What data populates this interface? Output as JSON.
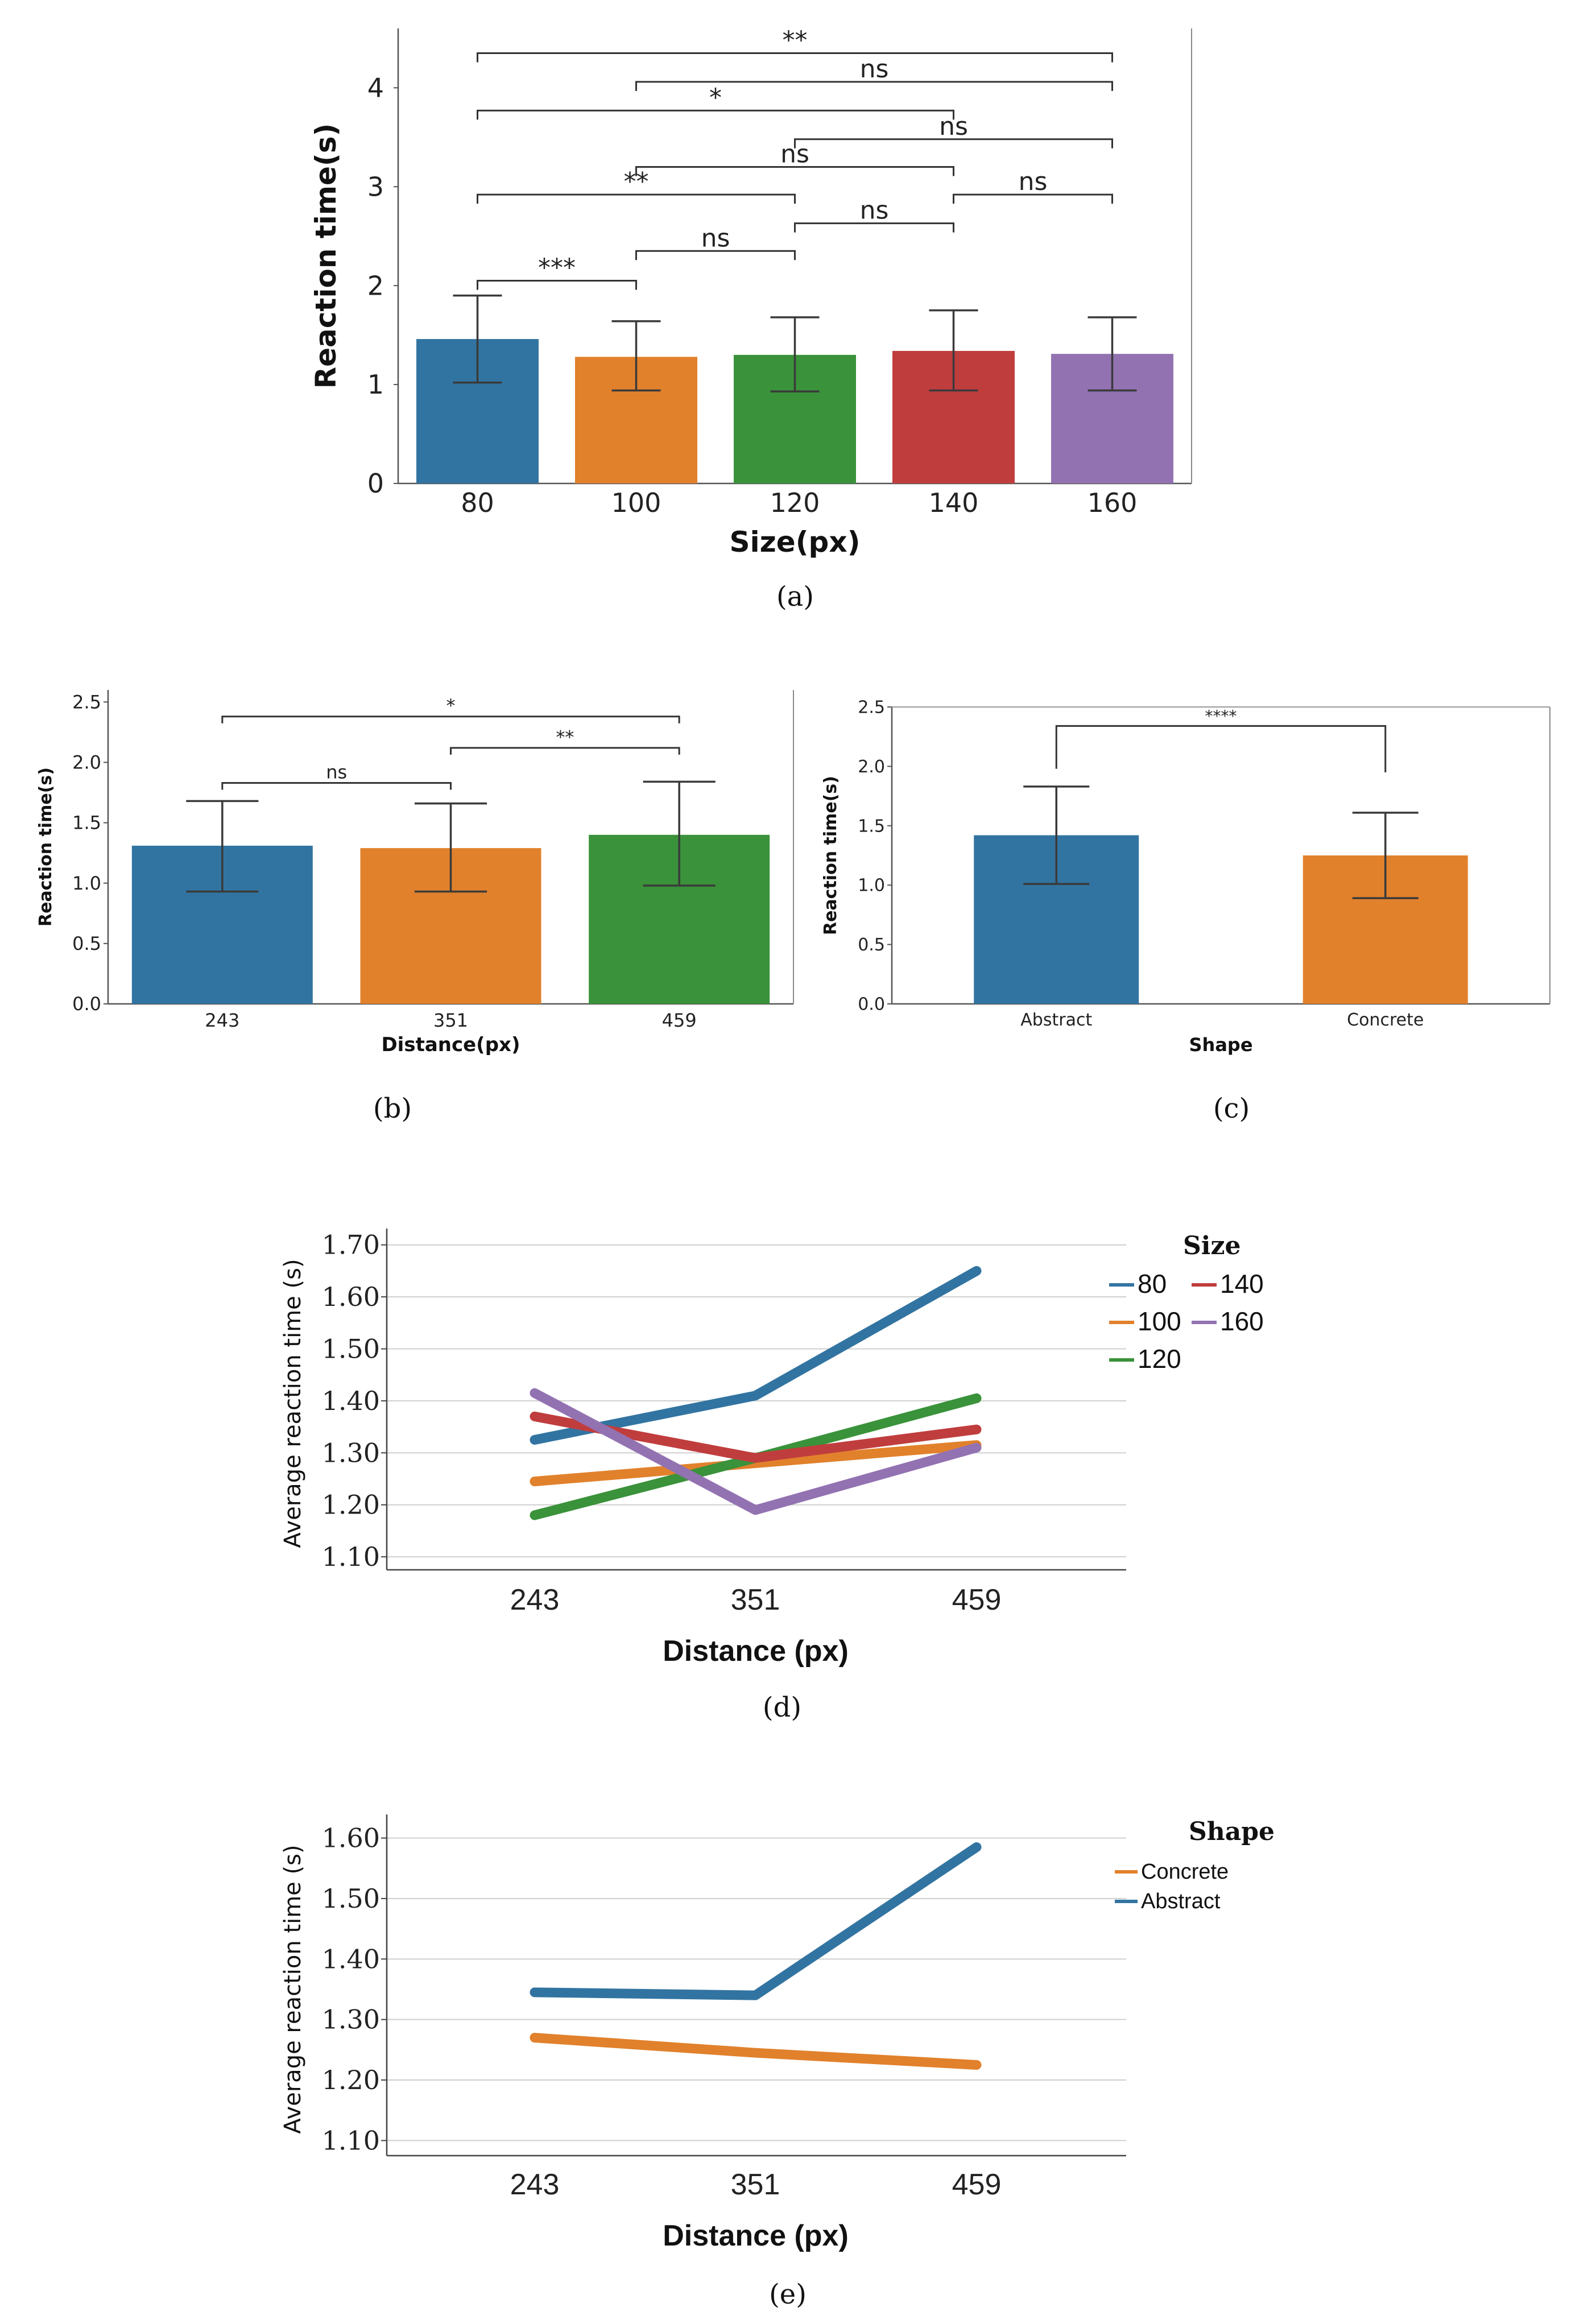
{
  "chart_data": [
    {
      "id": "a",
      "type": "bar",
      "panel_label": "(a)",
      "xlabel": "Size(px)",
      "ylabel": "Reaction time(s)",
      "ylim": [
        0,
        4.6
      ],
      "yticks": [
        0,
        1,
        2,
        3,
        4
      ],
      "categories": [
        "80",
        "100",
        "120",
        "140",
        "160"
      ],
      "values": [
        1.46,
        1.28,
        1.3,
        1.34,
        1.31
      ],
      "err_low": [
        1.02,
        0.94,
        0.93,
        0.94,
        0.94
      ],
      "err_high": [
        1.9,
        1.64,
        1.68,
        1.75,
        1.68
      ],
      "colors": [
        "#3274a1",
        "#e1812c",
        "#3a923a",
        "#c03d3e",
        "#9372b2"
      ],
      "significance": [
        {
          "from": 0,
          "to": 1,
          "y": 2.05,
          "label": "***"
        },
        {
          "from": 1,
          "to": 2,
          "y": 2.35,
          "label": "ns"
        },
        {
          "from": 2,
          "to": 3,
          "y": 2.63,
          "label": "ns"
        },
        {
          "from": 0,
          "to": 2,
          "y": 2.92,
          "label": "**"
        },
        {
          "from": 3,
          "to": 4,
          "y": 2.92,
          "label": "ns"
        },
        {
          "from": 1,
          "to": 3,
          "y": 3.2,
          "label": "ns"
        },
        {
          "from": 2,
          "to": 4,
          "y": 3.48,
          "label": "ns"
        },
        {
          "from": 0,
          "to": 3,
          "y": 3.77,
          "label": "*"
        },
        {
          "from": 1,
          "to": 4,
          "y": 4.06,
          "label": "ns"
        },
        {
          "from": 0,
          "to": 4,
          "y": 4.35,
          "label": "**"
        }
      ]
    },
    {
      "id": "b",
      "type": "bar",
      "panel_label": "(b)",
      "xlabel": "Distance(px)",
      "ylabel": "Reaction time(s)",
      "ylim": [
        0,
        2.6
      ],
      "yticks": [
        "0.0",
        "0.5",
        "1.0",
        "1.5",
        "2.0",
        "2.5"
      ],
      "categories": [
        "243",
        "351",
        "459"
      ],
      "values": [
        1.31,
        1.29,
        1.4
      ],
      "err_low": [
        0.93,
        0.93,
        0.98
      ],
      "err_high": [
        1.68,
        1.66,
        1.84
      ],
      "colors": [
        "#3274a1",
        "#e1812c",
        "#3a923a"
      ],
      "significance": [
        {
          "from": 0,
          "to": 1,
          "y": 1.83,
          "label": "ns"
        },
        {
          "from": 1,
          "to": 2,
          "y": 2.12,
          "label": "**"
        },
        {
          "from": 0,
          "to": 2,
          "y": 2.38,
          "label": "*"
        }
      ]
    },
    {
      "id": "c",
      "type": "bar",
      "panel_label": "(c)",
      "xlabel": "Shape",
      "ylabel": "Reaction time(s)",
      "ylim": [
        0,
        2.5
      ],
      "yticks": [
        "0.0",
        "0.5",
        "1.0",
        "1.5",
        "2.0",
        "2.5"
      ],
      "categories": [
        "Abstract",
        "Concrete"
      ],
      "values": [
        1.42,
        1.25
      ],
      "err_low": [
        1.01,
        0.89
      ],
      "err_high": [
        1.83,
        1.61
      ],
      "colors": [
        "#3274a1",
        "#e1812c"
      ],
      "significance": [
        {
          "from": 0,
          "to": 1,
          "y": 2.34,
          "bottom": [
            1.98,
            1.95
          ],
          "label": "****"
        }
      ]
    },
    {
      "id": "d",
      "type": "line",
      "panel_label": "(d)",
      "xlabel": "Distance (px)",
      "ylabel": "Average reaction time (s)",
      "ylim": [
        1.075,
        1.715
      ],
      "yticks": [
        "1.10",
        "1.20",
        "1.30",
        "1.40",
        "1.50",
        "1.60",
        "1.70"
      ],
      "x": [
        "243",
        "351",
        "459"
      ],
      "legend_title": "Size",
      "legend_position": "right",
      "series": [
        {
          "name": "80",
          "color": "#3274a1",
          "values": [
            1.325,
            1.41,
            1.65
          ]
        },
        {
          "name": "100",
          "color": "#e1812c",
          "values": [
            1.245,
            1.28,
            1.315
          ]
        },
        {
          "name": "120",
          "color": "#3a923a",
          "values": [
            1.18,
            1.29,
            1.405
          ]
        },
        {
          "name": "140",
          "color": "#c03d3e",
          "values": [
            1.37,
            1.29,
            1.345
          ]
        },
        {
          "name": "160",
          "color": "#9372b2",
          "values": [
            1.415,
            1.19,
            1.31
          ]
        }
      ]
    },
    {
      "id": "e",
      "type": "line",
      "panel_label": "(e)",
      "xlabel": "Distance (px)",
      "ylabel": "Average reaction time (s)",
      "ylim": [
        1.075,
        1.625
      ],
      "yticks": [
        "1.10",
        "1.20",
        "1.30",
        "1.40",
        "1.50",
        "1.60"
      ],
      "x": [
        "243",
        "351",
        "459"
      ],
      "legend_title": "Shape",
      "legend_position": "right",
      "series": [
        {
          "name": "Concrete",
          "color": "#e1812c",
          "values": [
            1.27,
            1.245,
            1.225
          ]
        },
        {
          "name": "Abstract",
          "color": "#3274a1",
          "values": [
            1.345,
            1.34,
            1.585
          ]
        }
      ]
    }
  ]
}
